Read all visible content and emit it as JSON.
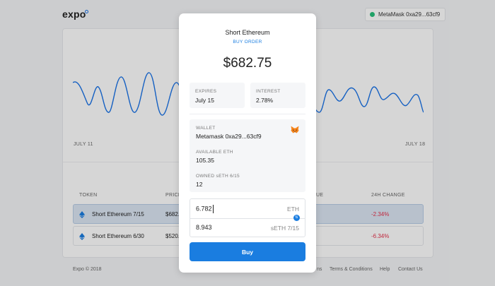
{
  "app": {
    "logo": "expo"
  },
  "header": {
    "wallet_label": "MetaMask 0xa29...63cf9"
  },
  "chart": {
    "start_label": "JULY 11",
    "end_label": "JULY 18"
  },
  "table": {
    "headers": {
      "token": "TOKEN",
      "price": "PRICE",
      "value": "UE",
      "change": "24H CHANGE"
    },
    "rows": [
      {
        "name": "Short Ethereum 7/15",
        "price": "$682.",
        "change": "-2.34%",
        "selected": true
      },
      {
        "name": "Short Ethereum 6/30",
        "price": "$520.",
        "change": "-6.34%",
        "selected": false
      }
    ]
  },
  "footer": {
    "copyright": "Expo © 2018",
    "links": [
      "ns",
      "Terms & Conditions",
      "Help",
      "Contact Us"
    ]
  },
  "modal": {
    "title": "Short Ethereum",
    "subtitle": "BUY ORDER",
    "price": "$682.75",
    "expires_label": "EXPIRES",
    "expires_value": "July 15",
    "interest_label": "INTEREST",
    "interest_value": "2.78%",
    "wallet_label": "WALLET",
    "wallet_value": "Metamask  0xa29...63cf9",
    "available_label": "AVAILABLE ETH",
    "available_value": "105.35",
    "owned_label": "OWNED sETH 6/15",
    "owned_value": "12",
    "input_eth_value": "6.782",
    "input_eth_unit": "ETH",
    "input_seth_value": "8.943",
    "input_seth_unit": "sETH 7/15",
    "buy_label": "Buy"
  },
  "colors": {
    "accent": "#1a7de0",
    "negative": "#e5304a",
    "status": "#27c07a"
  }
}
